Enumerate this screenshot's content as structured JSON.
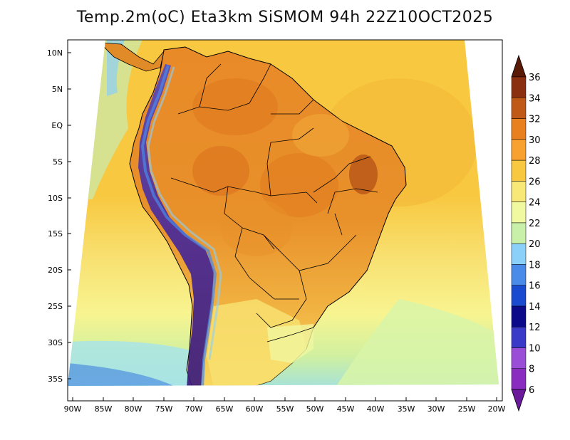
{
  "title": "Temp.2m(oC) Eta3km SiSMOM 94h 22Z10OCT2025",
  "axes": {
    "lat_labels": [
      "10N",
      "5N",
      "EQ",
      "5S",
      "10S",
      "15S",
      "20S",
      "25S",
      "30S",
      "35S"
    ],
    "lon_labels": [
      "90W",
      "85W",
      "80W",
      "75W",
      "70W",
      "65W",
      "60W",
      "55W",
      "50W",
      "45W",
      "40W",
      "35W",
      "30W",
      "25W",
      "20W"
    ]
  },
  "colorbar": {
    "levels": [
      "6",
      "8",
      "10",
      "12",
      "14",
      "16",
      "18",
      "20",
      "22",
      "24",
      "26",
      "28",
      "30",
      "32",
      "34",
      "36"
    ],
    "colors": [
      "#6a1a9a",
      "#8a2cc0",
      "#9a4ed8",
      "#3a3ac8",
      "#0a0a8a",
      "#1a4ad0",
      "#4a8ae8",
      "#8ad0f8",
      "#c8f0a8",
      "#f0f8a0",
      "#f8e878",
      "#f8c840",
      "#f8a030",
      "#e88020",
      "#c05818",
      "#8a3010",
      "#5a1a08"
    ]
  },
  "map_colors": {
    "ocean_tropical": "#f8c840",
    "ocean_warm": "#f8e070",
    "ocean_mild": "#f8f490",
    "ocean_cool": "#d0f0a0",
    "ocean_cold": "#a0e0e0",
    "land_hot": "#f0a030",
    "land_hotter": "#e08020",
    "land_hottest": "#b85818",
    "andes_cold": "#4a3aa8",
    "andes_colder": "#3a1a8a",
    "borders": "#000000"
  }
}
